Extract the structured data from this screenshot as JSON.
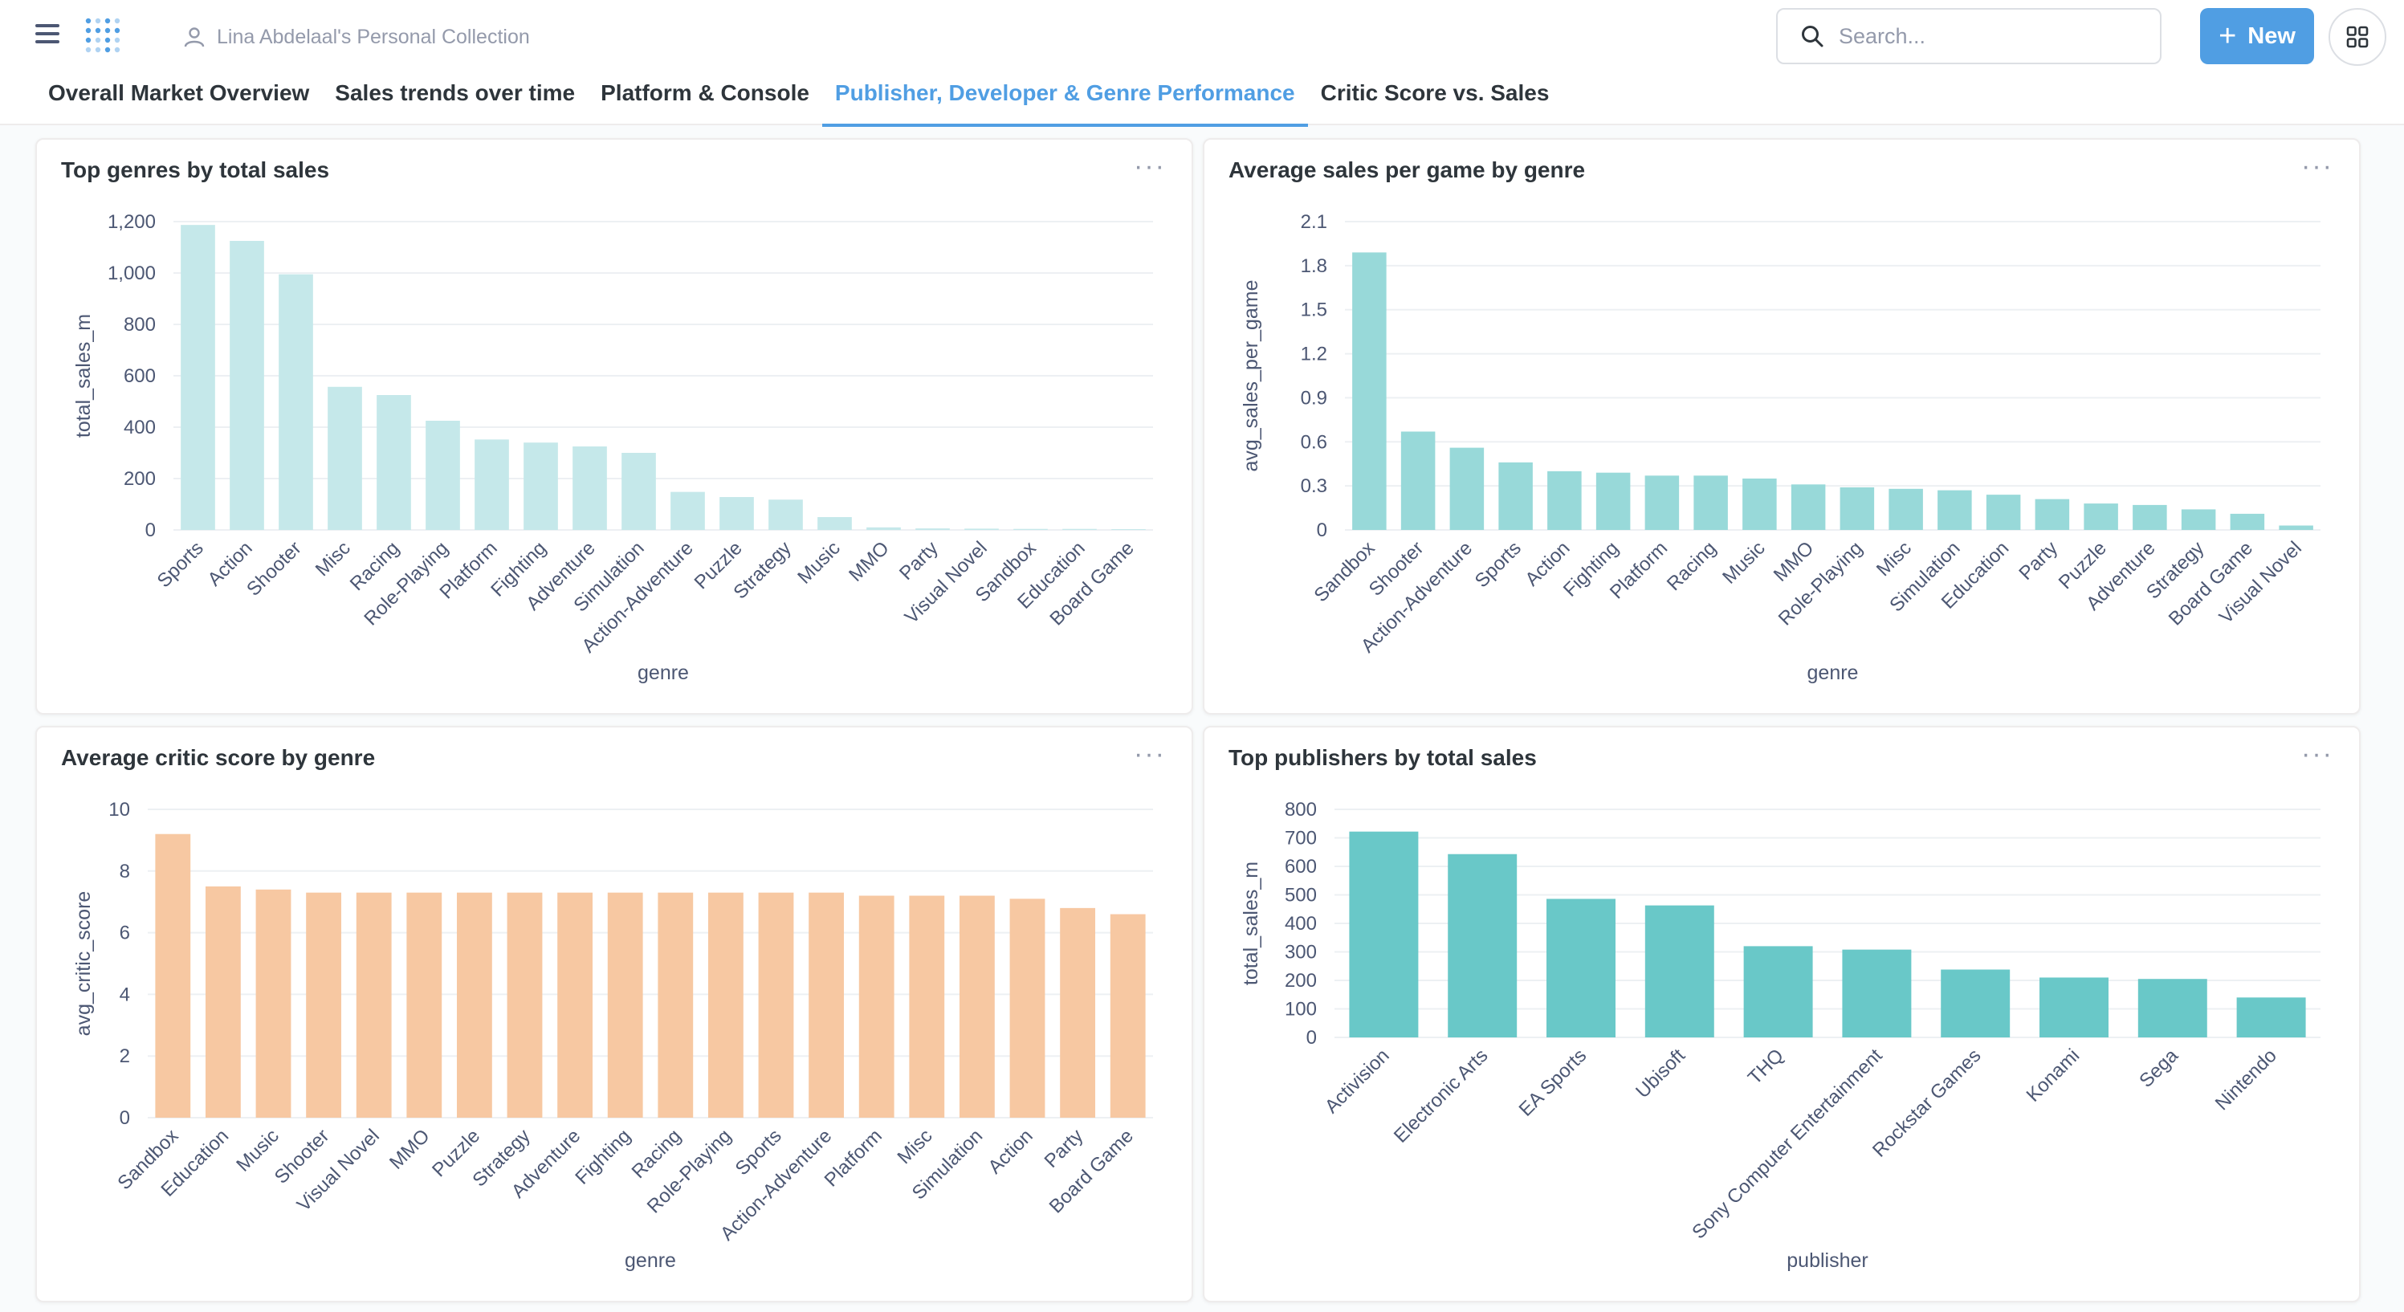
{
  "header": {
    "collection": "Lina Abdelaal's Personal Collection",
    "search_placeholder": "Search...",
    "new_label": "New"
  },
  "tabs": [
    {
      "label": "Overall Market Overview",
      "active": false
    },
    {
      "label": "Sales trends over time",
      "active": false
    },
    {
      "label": "Platform & Console",
      "active": false
    },
    {
      "label": "Publisher, Developer & Genre Performance",
      "active": true
    },
    {
      "label": "Critic Score vs. Sales",
      "active": false
    }
  ],
  "colors": {
    "accent": "#509EE3",
    "bar_light_teal": "#C5E8EA",
    "bar_teal": "#98D9D9",
    "bar_peach": "#F7C8A2",
    "bar_dark_teal": "#69C8C8"
  },
  "menu_label": "···",
  "chart_data": [
    {
      "type": "bar",
      "title": "Top genres by total sales",
      "xlabel": "genre",
      "ylabel": "total_sales_m",
      "ylim": [
        0,
        1200
      ],
      "yticks": [
        "0",
        "200",
        "400",
        "600",
        "800",
        "1,000",
        "1,200"
      ],
      "categories": [
        "Sports",
        "Action",
        "Shooter",
        "Misc",
        "Racing",
        "Role-Playing",
        "Platform",
        "Fighting",
        "Adventure",
        "Simulation",
        "Action-Adventure",
        "Puzzle",
        "Strategy",
        "Music",
        "MMO",
        "Party",
        "Visual Novel",
        "Sandbox",
        "Education",
        "Board Game"
      ],
      "values": [
        1187,
        1125,
        995,
        557,
        525,
        425,
        352,
        340,
        325,
        300,
        148,
        128,
        118,
        50,
        10,
        6,
        5,
        4,
        4,
        3
      ],
      "color": "#C5E8EA"
    },
    {
      "type": "bar",
      "title": "Average sales per game by genre",
      "xlabel": "genre",
      "ylabel": "avg_sales_per_game",
      "ylim": [
        0,
        2.1
      ],
      "yticks": [
        "0",
        "0.3",
        "0.6",
        "0.9",
        "1.2",
        "1.5",
        "1.8",
        "2.1"
      ],
      "categories": [
        "Sandbox",
        "Shooter",
        "Action-Adventure",
        "Sports",
        "Action",
        "Fighting",
        "Platform",
        "Racing",
        "Music",
        "MMO",
        "Role-Playing",
        "Misc",
        "Simulation",
        "Education",
        "Party",
        "Puzzle",
        "Adventure",
        "Strategy",
        "Board Game",
        "Visual Novel"
      ],
      "values": [
        1.89,
        0.67,
        0.56,
        0.46,
        0.4,
        0.39,
        0.37,
        0.37,
        0.35,
        0.31,
        0.29,
        0.28,
        0.27,
        0.24,
        0.21,
        0.18,
        0.17,
        0.14,
        0.11,
        0.03
      ],
      "color": "#98D9D9"
    },
    {
      "type": "bar",
      "title": "Average critic score by genre",
      "xlabel": "genre",
      "ylabel": "avg_critic_score",
      "ylim": [
        0,
        10
      ],
      "yticks": [
        "0",
        "2",
        "4",
        "6",
        "8",
        "10"
      ],
      "categories": [
        "Sandbox",
        "Education",
        "Music",
        "Shooter",
        "Visual Novel",
        "MMO",
        "Puzzle",
        "Strategy",
        "Adventure",
        "Fighting",
        "Racing",
        "Role-Playing",
        "Sports",
        "Action-Adventure",
        "Platform",
        "Misc",
        "Simulation",
        "Action",
        "Party",
        "Board Game"
      ],
      "values": [
        9.2,
        7.5,
        7.4,
        7.3,
        7.3,
        7.3,
        7.3,
        7.3,
        7.3,
        7.3,
        7.3,
        7.3,
        7.3,
        7.3,
        7.2,
        7.2,
        7.2,
        7.1,
        6.8,
        6.6
      ],
      "color": "#F7C8A2"
    },
    {
      "type": "bar",
      "title": "Top publishers by total sales",
      "xlabel": "publisher",
      "ylabel": "total_sales_m",
      "ylim": [
        0,
        800
      ],
      "yticks": [
        "0",
        "100",
        "200",
        "300",
        "400",
        "500",
        "600",
        "700",
        "800"
      ],
      "categories": [
        "Activision",
        "Electronic Arts",
        "EA Sports",
        "Ubisoft",
        "THQ",
        "Sony Computer Entertainment",
        "Rockstar Games",
        "Konami",
        "Sega",
        "Nintendo"
      ],
      "values": [
        722,
        643,
        486,
        463,
        320,
        308,
        238,
        210,
        205,
        140
      ],
      "color": "#69C8C8"
    }
  ]
}
